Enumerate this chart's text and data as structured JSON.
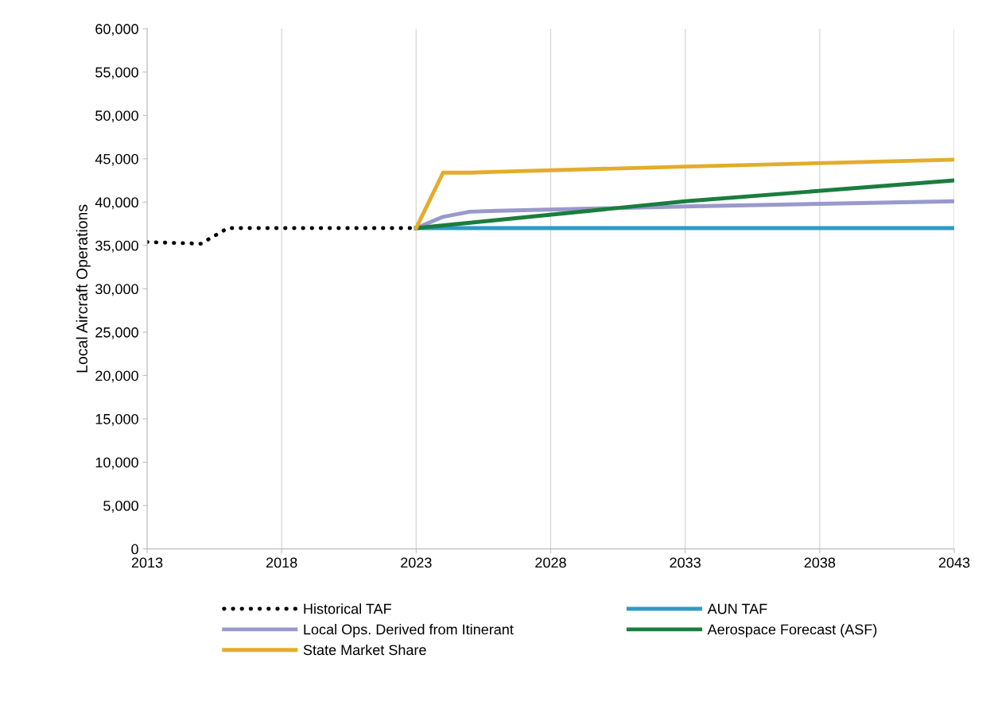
{
  "chart_data": {
    "type": "line",
    "ylabel": "Local Aircraft Operations",
    "xlim": [
      2013,
      2043
    ],
    "xticks": [
      2013,
      2018,
      2023,
      2028,
      2033,
      2038,
      2043
    ],
    "ylim": [
      0,
      60000
    ],
    "yticks": [
      {
        "value": 0,
        "label": "0"
      },
      {
        "value": 5000,
        "label": "5,000"
      },
      {
        "value": 10000,
        "label": "10,000"
      },
      {
        "value": 15000,
        "label": "15,000"
      },
      {
        "value": 20000,
        "label": "20,000"
      },
      {
        "value": 25000,
        "label": "25,000"
      },
      {
        "value": 30000,
        "label": "30,000"
      },
      {
        "value": 35000,
        "label": "35,000"
      },
      {
        "value": 40000,
        "label": "40,000"
      },
      {
        "value": 45000,
        "label": "45,000"
      },
      {
        "value": 50000,
        "label": "50,000"
      },
      {
        "value": 55000,
        "label": "55,000"
      },
      {
        "value": 60000,
        "label": "60,000"
      }
    ],
    "grid": "x",
    "legend": "bottom",
    "marker": "none",
    "series": [
      {
        "name": "Historical TAF",
        "color": "#000000",
        "line_style": "dotted",
        "x": [
          2013,
          2014,
          2015,
          2016,
          2017,
          2018,
          2019,
          2020,
          2021,
          2022,
          2023
        ],
        "values": [
          35400,
          35300,
          35200,
          37000,
          37000,
          37000,
          37000,
          37000,
          37000,
          37000,
          37000
        ]
      },
      {
        "name": "AUN TAF",
        "color": "#2e9ac4",
        "line_style": "solid",
        "x": [
          2023,
          2033,
          2043
        ],
        "values": [
          37000,
          37000,
          37000
        ]
      },
      {
        "name": "Local Ops. Derived from Itinerant",
        "color": "#9999cc",
        "line_style": "solid",
        "x": [
          2023,
          2024,
          2025,
          2026,
          2033,
          2043
        ],
        "values": [
          37000,
          38300,
          38900,
          39000,
          39500,
          40100
        ]
      },
      {
        "name": "Aerospace Forecast (ASF)",
        "color": "#1a7d3e",
        "line_style": "solid",
        "x": [
          2023,
          2033,
          2043
        ],
        "values": [
          37000,
          40100,
          42500
        ]
      },
      {
        "name": "State Market Share",
        "color": "#e3ac2a",
        "line_style": "solid",
        "x": [
          2023,
          2024,
          2025,
          2026,
          2033,
          2043
        ],
        "values": [
          37000,
          43400,
          43400,
          43500,
          44100,
          44900
        ]
      }
    ]
  }
}
